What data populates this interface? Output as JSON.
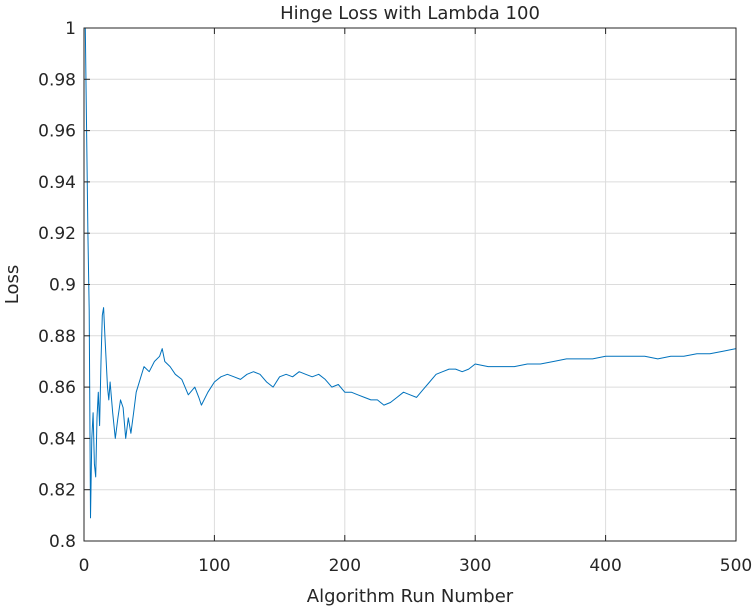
{
  "chart_data": {
    "type": "line",
    "title": "Hinge Loss with Lambda 100",
    "xlabel": "Algorithm Run Number",
    "ylabel": "Loss",
    "xlim": [
      0,
      500
    ],
    "ylim": [
      0.8,
      1.0
    ],
    "xticks": [
      0,
      100,
      200,
      300,
      400,
      500
    ],
    "xtick_labels": [
      "0",
      "100",
      "200",
      "300",
      "400",
      "500"
    ],
    "yticks": [
      0.8,
      0.82,
      0.84,
      0.86,
      0.88,
      0.9,
      0.92,
      0.94,
      0.96,
      0.98,
      1.0
    ],
    "ytick_labels": [
      "0.8",
      "0.82",
      "0.84",
      "0.86",
      "0.88",
      "0.9",
      "0.92",
      "0.94",
      "0.96",
      "0.98",
      "1"
    ],
    "grid": true,
    "line_color": "#0072bd",
    "series": [
      {
        "x": [
          1,
          2,
          3,
          4,
          5,
          6,
          7,
          8,
          9,
          10,
          11,
          12,
          13,
          14,
          15,
          16,
          17,
          18,
          19,
          20,
          22,
          24,
          26,
          28,
          30,
          32,
          34,
          36,
          38,
          40,
          43,
          46,
          50,
          54,
          58,
          60,
          62,
          66,
          70,
          75,
          80,
          85,
          88,
          90,
          95,
          100,
          105,
          110,
          115,
          120,
          125,
          130,
          135,
          140,
          145,
          150,
          155,
          160,
          165,
          170,
          175,
          180,
          185,
          190,
          195,
          200,
          205,
          210,
          215,
          220,
          225,
          230,
          235,
          240,
          245,
          250,
          255,
          260,
          265,
          270,
          275,
          280,
          285,
          290,
          295,
          300,
          310,
          320,
          330,
          340,
          350,
          360,
          370,
          380,
          390,
          400,
          410,
          420,
          430,
          440,
          450,
          460,
          470,
          480,
          490,
          500
        ],
        "y": [
          1.0,
          0.96,
          0.92,
          0.89,
          0.809,
          0.84,
          0.85,
          0.83,
          0.825,
          0.848,
          0.858,
          0.845,
          0.87,
          0.888,
          0.891,
          0.88,
          0.87,
          0.86,
          0.855,
          0.862,
          0.85,
          0.84,
          0.848,
          0.855,
          0.852,
          0.84,
          0.848,
          0.842,
          0.85,
          0.858,
          0.863,
          0.868,
          0.866,
          0.87,
          0.872,
          0.875,
          0.87,
          0.868,
          0.865,
          0.863,
          0.857,
          0.86,
          0.856,
          0.853,
          0.858,
          0.862,
          0.864,
          0.865,
          0.864,
          0.863,
          0.865,
          0.866,
          0.865,
          0.862,
          0.86,
          0.864,
          0.865,
          0.864,
          0.866,
          0.865,
          0.864,
          0.865,
          0.863,
          0.86,
          0.861,
          0.858,
          0.858,
          0.857,
          0.856,
          0.855,
          0.855,
          0.853,
          0.854,
          0.856,
          0.858,
          0.857,
          0.856,
          0.859,
          0.862,
          0.865,
          0.866,
          0.867,
          0.867,
          0.866,
          0.867,
          0.869,
          0.868,
          0.868,
          0.868,
          0.869,
          0.869,
          0.87,
          0.871,
          0.871,
          0.871,
          0.872,
          0.872,
          0.872,
          0.872,
          0.871,
          0.872,
          0.872,
          0.873,
          0.873,
          0.874,
          0.875
        ]
      }
    ]
  }
}
